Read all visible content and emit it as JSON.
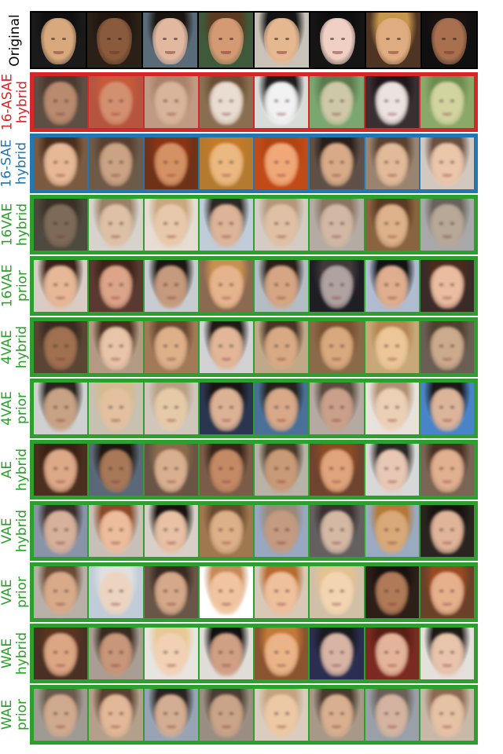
{
  "rows": [
    {
      "id": "original",
      "label_lines": [
        "Original"
      ],
      "color": "#000000",
      "border": "#000000",
      "cells": [
        {
          "bg": "#1a1a1a",
          "skin": "#d9a97e",
          "hair": "#101010"
        },
        {
          "bg": "#2a2018",
          "skin": "#8a5a3c",
          "hair": "#201510"
        },
        {
          "bg": "#5a6b78",
          "skin": "#e2b9a0",
          "hair": "#1b1410"
        },
        {
          "bg": "#3e5a3a",
          "skin": "#d49a74",
          "hair": "#5a3a22"
        },
        {
          "bg": "#c9c2b8",
          "skin": "#e6b890",
          "hair": "#141414"
        },
        {
          "bg": "#151515",
          "skin": "#f0d0c4",
          "hair": "#0e0e0e"
        },
        {
          "bg": "#4e3422",
          "skin": "#e0ad82",
          "hair": "#c8974e"
        },
        {
          "bg": "#101010",
          "skin": "#a8704e",
          "hair": "#1a1210"
        }
      ]
    },
    {
      "id": "16-asae-hybrid",
      "label_lines": [
        "16-ASAE",
        "hybrid"
      ],
      "color": "#d62728",
      "border": "#d62728",
      "cells": [
        {
          "bg": "#5e4e44",
          "skin": "#b98a6e",
          "hair": "#4a3a30"
        },
        {
          "bg": "#b55540",
          "skin": "#d39070",
          "hair": "#c65a3a"
        },
        {
          "bg": "#c09a82",
          "skin": "#d8b49a",
          "hair": "#a8846a"
        },
        {
          "bg": "#8a6e50",
          "skin": "#e9dcd0",
          "hair": "#6a4f36"
        },
        {
          "bg": "#d8dcd8",
          "skin": "#f2f2f2",
          "hair": "#1e1e1e"
        },
        {
          "bg": "#7aa670",
          "skin": "#cfc8a8",
          "hair": "#5c7a4e"
        },
        {
          "bg": "#3a2f30",
          "skin": "#ece2e0",
          "hair": "#1e1618"
        },
        {
          "bg": "#8aa86a",
          "skin": "#d2d4a0",
          "hair": "#6e8c50"
        }
      ]
    },
    {
      "id": "16-sae-hybrid",
      "label_lines": [
        "16-SAE",
        "hybrid"
      ],
      "color": "#1f77b4",
      "border": "#1f77b4",
      "cells": [
        {
          "bg": "#7a5a40",
          "skin": "#e6b896",
          "hair": "#4a2e1c"
        },
        {
          "bg": "#6e5a48",
          "skin": "#caa284",
          "hair": "#5a4030"
        },
        {
          "bg": "#6e3218",
          "skin": "#d49264",
          "hair": "#8a3414"
        },
        {
          "bg": "#b47a30",
          "skin": "#eab880",
          "hair": "#c47a28"
        },
        {
          "bg": "#c04a18",
          "skin": "#f0a878",
          "hair": "#b04412"
        },
        {
          "bg": "#5e5048",
          "skin": "#d8aa88",
          "hair": "#2a1e18"
        },
        {
          "bg": "#9a8470",
          "skin": "#e2ba9a",
          "hair": "#5a4230"
        },
        {
          "bg": "#d2c8c0",
          "skin": "#eac6aa",
          "hair": "#6a5040"
        }
      ]
    },
    {
      "id": "16vae-hybrid",
      "label_lines": [
        "16VAE",
        "hybrid"
      ],
      "color": "#2ca02c",
      "border": "#2ca02c",
      "cells": [
        {
          "bg": "#4e4a40",
          "skin": "#7e6a58",
          "hair": "#3a3028"
        },
        {
          "bg": "#d8d2cc",
          "skin": "#ddc0a6",
          "hair": "#9a8068"
        },
        {
          "bg": "#e6dcd2",
          "skin": "#e8c8aa",
          "hair": "#c8a880"
        },
        {
          "bg": "#c0ccd8",
          "skin": "#dcb498",
          "hair": "#2e2824"
        },
        {
          "bg": "#d4ccc4",
          "skin": "#e0c0a4",
          "hair": "#b4987c"
        },
        {
          "bg": "#b4aca4",
          "skin": "#d2b8a4",
          "hair": "#8a7462"
        },
        {
          "bg": "#8a6440",
          "skin": "#ddb28a",
          "hair": "#5a3a22"
        },
        {
          "bg": "#a8a8a8",
          "skin": "#b8a898",
          "hair": "#6a625a"
        }
      ]
    },
    {
      "id": "16vae-prior",
      "label_lines": [
        "16VAE",
        "prior"
      ],
      "color": "#2ca02c",
      "border": "#2ca02c",
      "cells": [
        {
          "bg": "#d8ccc4",
          "skin": "#e6b898",
          "hair": "#3a2218"
        },
        {
          "bg": "#5a3a30",
          "skin": "#dca488",
          "hair": "#3e2418"
        },
        {
          "bg": "#c8ccd0",
          "skin": "#c69a7c",
          "hair": "#1a1612"
        },
        {
          "bg": "#8a6a50",
          "skin": "#e6b48c",
          "hair": "#c89050"
        },
        {
          "bg": "#b4bcc4",
          "skin": "#d6a684",
          "hair": "#2a1e16"
        },
        {
          "bg": "#1e1e24",
          "skin": "#b0a2a0",
          "hair": "#40383a"
        },
        {
          "bg": "#b0bcd0",
          "skin": "#e0ae8e",
          "hair": "#121214"
        },
        {
          "bg": "#3a2a28",
          "skin": "#eabca0",
          "hair": "#4a2a1c"
        }
      ]
    },
    {
      "id": "4vae-hybrid",
      "label_lines": [
        "4VAE",
        "hybrid"
      ],
      "color": "#2ca02c",
      "border": "#2ca02c",
      "cells": [
        {
          "bg": "#5a4434",
          "skin": "#a07050",
          "hair": "#3a2a20"
        },
        {
          "bg": "#b49a84",
          "skin": "#e8c4a8",
          "hair": "#4a3220"
        },
        {
          "bg": "#a27a58",
          "skin": "#ddb08a",
          "hair": "#6a4830"
        },
        {
          "bg": "#d2d2d4",
          "skin": "#e2b696",
          "hair": "#221a16"
        },
        {
          "bg": "#c0a888",
          "skin": "#d8aa84",
          "hair": "#4a3424"
        },
        {
          "bg": "#8a6a48",
          "skin": "#d8a87e",
          "hair": "#7a5230"
        },
        {
          "bg": "#c8a878",
          "skin": "#ecc698",
          "hair": "#b48652"
        },
        {
          "bg": "#6a5e54",
          "skin": "#ccaa8c",
          "hair": "#50402e"
        }
      ]
    },
    {
      "id": "4vae-prior",
      "label_lines": [
        "4VAE",
        "prior"
      ],
      "color": "#2ca02c",
      "border": "#2ca02c",
      "cells": [
        {
          "bg": "#cfd0d0",
          "skin": "#c8a284",
          "hair": "#2a2420"
        },
        {
          "bg": "#c8c0b0",
          "skin": "#e2c0a0",
          "hair": "#d4bc90"
        },
        {
          "bg": "#d0c6bc",
          "skin": "#e6caa8",
          "hair": "#b8a084"
        },
        {
          "bg": "#2a3650",
          "skin": "#dcb294",
          "hair": "#1a1414"
        },
        {
          "bg": "#4a7098",
          "skin": "#d8a888",
          "hair": "#24201c"
        },
        {
          "bg": "#b4aaa2",
          "skin": "#caa08a",
          "hair": "#5a4a40"
        },
        {
          "bg": "#e8e2dc",
          "skin": "#ecd0b6",
          "hair": "#b09070"
        },
        {
          "bg": "#4a84c8",
          "skin": "#dcb49a",
          "hair": "#1a1818"
        }
      ]
    },
    {
      "id": "ae-hybrid",
      "label_lines": [
        "AE",
        "hybrid"
      ],
      "color": "#2ca02c",
      "border": "#2ca02c",
      "cells": [
        {
          "bg": "#4a2e1e",
          "skin": "#dca888",
          "hair": "#3a2014"
        },
        {
          "bg": "#5a6878",
          "skin": "#a87858",
          "hair": "#1e1610"
        },
        {
          "bg": "#6a5446",
          "skin": "#d8b090",
          "hair": "#8a6a4a"
        },
        {
          "bg": "#7a5c48",
          "skin": "#c48a66",
          "hair": "#3a2418"
        },
        {
          "bg": "#b8b2a8",
          "skin": "#c89a78",
          "hair": "#4a3a2a"
        },
        {
          "bg": "#6e4430",
          "skin": "#e0a47c",
          "hair": "#8a4a24"
        },
        {
          "bg": "#d8d8d8",
          "skin": "#e8c8b4",
          "hair": "#2a2624"
        },
        {
          "bg": "#7a6454",
          "skin": "#e0b090",
          "hair": "#4a3022"
        }
      ]
    },
    {
      "id": "vae-hybrid",
      "label_lines": [
        "VAE",
        "hybrid"
      ],
      "color": "#2ca02c",
      "border": "#2ca02c",
      "cells": [
        {
          "bg": "#8a94a8",
          "skin": "#d6b09a",
          "hair": "#3a2e2a"
        },
        {
          "bg": "#c8c0b8",
          "skin": "#ecbc9c",
          "hair": "#8a4a2a"
        },
        {
          "bg": "#d8d0c8",
          "skin": "#e8c0a4",
          "hair": "#1a1210"
        },
        {
          "bg": "#a07850",
          "skin": "#dcb088",
          "hair": "#6a4a2e"
        },
        {
          "bg": "#98a8c0",
          "skin": "#c49a80",
          "hair": "#9a8a7a"
        },
        {
          "bg": "#646060",
          "skin": "#d4b8a4",
          "hair": "#3a3230"
        },
        {
          "bg": "#9aaac0",
          "skin": "#d8a878",
          "hair": "#b47838"
        },
        {
          "bg": "#2a2420",
          "skin": "#e0b498",
          "hair": "#181210"
        }
      ]
    },
    {
      "id": "vae-prior",
      "label_lines": [
        "VAE",
        "prior"
      ],
      "color": "#2ca02c",
      "border": "#2ca02c",
      "cells": [
        {
          "bg": "#b8b0a8",
          "skin": "#d8aa8a",
          "hair": "#6a4a34"
        },
        {
          "bg": "#c0ccd8",
          "skin": "#ecd4c0",
          "hair": "#e0e0e0"
        },
        {
          "bg": "#6a5648",
          "skin": "#d4a888",
          "hair": "#3a2a22"
        },
        {
          "bg": "#ffffff",
          "skin": "#f0c4a0",
          "hair": "#c88a5a"
        },
        {
          "bg": "#d8c8b8",
          "skin": "#eec09c",
          "hair": "#b86a30"
        },
        {
          "bg": "#d0c0a8",
          "skin": "#f2d4b0",
          "hair": "#e2c290"
        },
        {
          "bg": "#2e1e18",
          "skin": "#b07a58",
          "hair": "#1a120e"
        },
        {
          "bg": "#6a4028",
          "skin": "#e6b08c",
          "hair": "#9a4a22"
        }
      ]
    },
    {
      "id": "wae-hybrid",
      "label_lines": [
        "WAE",
        "hybrid"
      ],
      "color": "#2ca02c",
      "border": "#2ca02c",
      "cells": [
        {
          "bg": "#4a3024",
          "skin": "#dca684",
          "hair": "#5a3420"
        },
        {
          "bg": "#a89e94",
          "skin": "#c89678",
          "hair": "#3a2a20"
        },
        {
          "bg": "#e8e4e0",
          "skin": "#f2d0b4",
          "hair": "#e8c894"
        },
        {
          "bg": "#e0dcd8",
          "skin": "#d0a084",
          "hair": "#141010"
        },
        {
          "bg": "#8a5430",
          "skin": "#eab488",
          "hair": "#c4783a"
        },
        {
          "bg": "#2a2e50",
          "skin": "#d8b4a4",
          "hair": "#1a1820"
        },
        {
          "bg": "#7a2a20",
          "skin": "#e4b49a",
          "hair": "#5a1e16"
        },
        {
          "bg": "#e4e0dc",
          "skin": "#e8c4ac",
          "hair": "#1e1816"
        }
      ]
    },
    {
      "id": "wae-prior",
      "label_lines": [
        "WAE",
        "prior"
      ],
      "color": "#2ca02c",
      "border": "#2ca02c",
      "cells": [
        {
          "bg": "#a09a94",
          "skin": "#d0aa8e",
          "hair": "#6a5a4c"
        },
        {
          "bg": "#b4a08a",
          "skin": "#e2b898",
          "hair": "#5a4030"
        },
        {
          "bg": "#98a4b4",
          "skin": "#d4ae92",
          "hair": "#2a2420"
        },
        {
          "bg": "#9a8e82",
          "skin": "#caa488",
          "hair": "#4a3e34"
        },
        {
          "bg": "#dacdc0",
          "skin": "#ecc8a4",
          "hair": "#c4a480"
        },
        {
          "bg": "#a89888",
          "skin": "#d8b090",
          "hair": "#4a3a2e"
        },
        {
          "bg": "#9aa0a8",
          "skin": "#d4b4a0",
          "hair": "#6a6058"
        },
        {
          "bg": "#c8b8a8",
          "skin": "#e6c2a4",
          "hair": "#8a6a52"
        }
      ]
    }
  ]
}
